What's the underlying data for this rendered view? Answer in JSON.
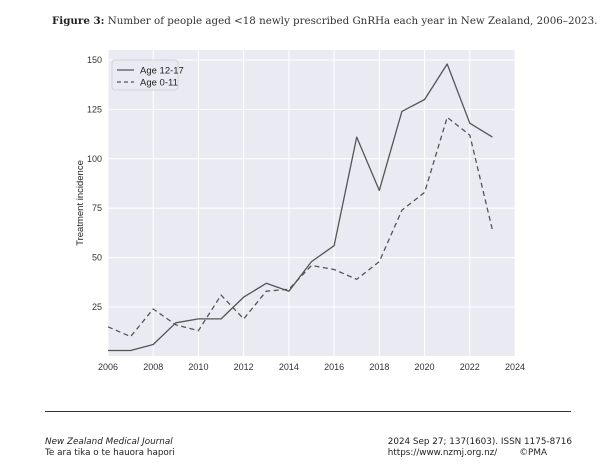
{
  "caption": {
    "label": "Figure 3:",
    "text": "Number of people aged <18 newly prescribed GnRHa each year in New Zealand, 2006–2023."
  },
  "chart_data": {
    "type": "line",
    "title": "",
    "xlabel": "",
    "ylabel": "Treatment incidence",
    "xlim": [
      2006,
      2024
    ],
    "ylim": [
      0,
      150
    ],
    "xticks": [
      2006,
      2008,
      2010,
      2012,
      2014,
      2016,
      2018,
      2020,
      2022,
      2024
    ],
    "yticks": [
      25,
      50,
      75,
      100,
      125,
      150
    ],
    "grid": true,
    "legend": "top-left",
    "series": [
      {
        "name": "Age 12-17",
        "style": "solid",
        "color": "#555555",
        "x": [
          2006,
          2007,
          2008,
          2009,
          2010,
          2011,
          2012,
          2013,
          2014,
          2015,
          2016,
          2017,
          2018,
          2019,
          2020,
          2021,
          2022,
          2023
        ],
        "values": [
          3,
          3,
          6,
          17,
          19,
          19,
          30,
          37,
          33,
          48,
          56,
          111,
          84,
          124,
          130,
          148,
          118,
          111
        ]
      },
      {
        "name": "Age 0-11",
        "style": "dashed",
        "color": "#555555",
        "x": [
          2006,
          2007,
          2008,
          2009,
          2010,
          2011,
          2012,
          2013,
          2014,
          2015,
          2016,
          2017,
          2018,
          2019,
          2020,
          2021,
          2022,
          2023
        ],
        "values": [
          15,
          10,
          24,
          16,
          13,
          31,
          19,
          33,
          34,
          46,
          44,
          39,
          48,
          74,
          83,
          121,
          112,
          64
        ]
      }
    ]
  },
  "footer": {
    "journal": "New Zealand Medical Journal",
    "tagline": "Te ara tika o te hauora hapori",
    "citation": "2024 Sep 27; 137(1603). ISSN 1175‑8716",
    "url": "https://www.nzmj.org.nz/",
    "copyright": "©PMA"
  }
}
